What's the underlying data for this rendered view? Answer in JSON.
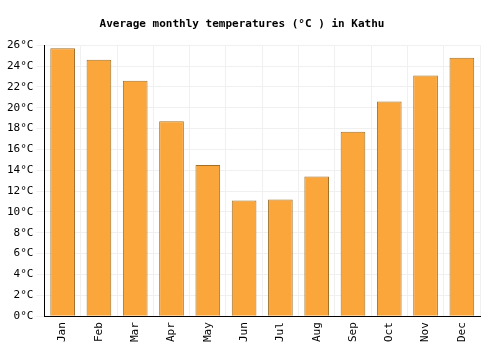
{
  "chart_data": {
    "type": "bar",
    "title": "Average monthly temperatures (°C ) in Kathu",
    "categories": [
      "Jan",
      "Feb",
      "Mar",
      "Apr",
      "May",
      "Jun",
      "Jul",
      "Aug",
      "Sep",
      "Oct",
      "Nov",
      "Dec"
    ],
    "values": [
      25.7,
      24.6,
      22.6,
      18.7,
      14.5,
      11.1,
      11.2,
      13.4,
      17.7,
      20.6,
      23.1,
      24.8
    ],
    "color": "#fba63a",
    "ylim": [
      0,
      26
    ],
    "yticks": [
      {
        "value": 0,
        "label": "0°C"
      },
      {
        "value": 2,
        "label": "2°C"
      },
      {
        "value": 4,
        "label": "4°C"
      },
      {
        "value": 6,
        "label": "6°C"
      },
      {
        "value": 8,
        "label": "8°C"
      },
      {
        "value": 10,
        "label": "10°C"
      },
      {
        "value": 12,
        "label": "12°C"
      },
      {
        "value": 14,
        "label": "14°C"
      },
      {
        "value": 16,
        "label": "16°C"
      },
      {
        "value": 18,
        "label": "18°C"
      },
      {
        "value": 20,
        "label": "20°C"
      },
      {
        "value": 22,
        "label": "22°C"
      },
      {
        "value": 24,
        "label": "24°C"
      },
      {
        "value": 26,
        "label": "26°C"
      }
    ],
    "grid": true
  }
}
